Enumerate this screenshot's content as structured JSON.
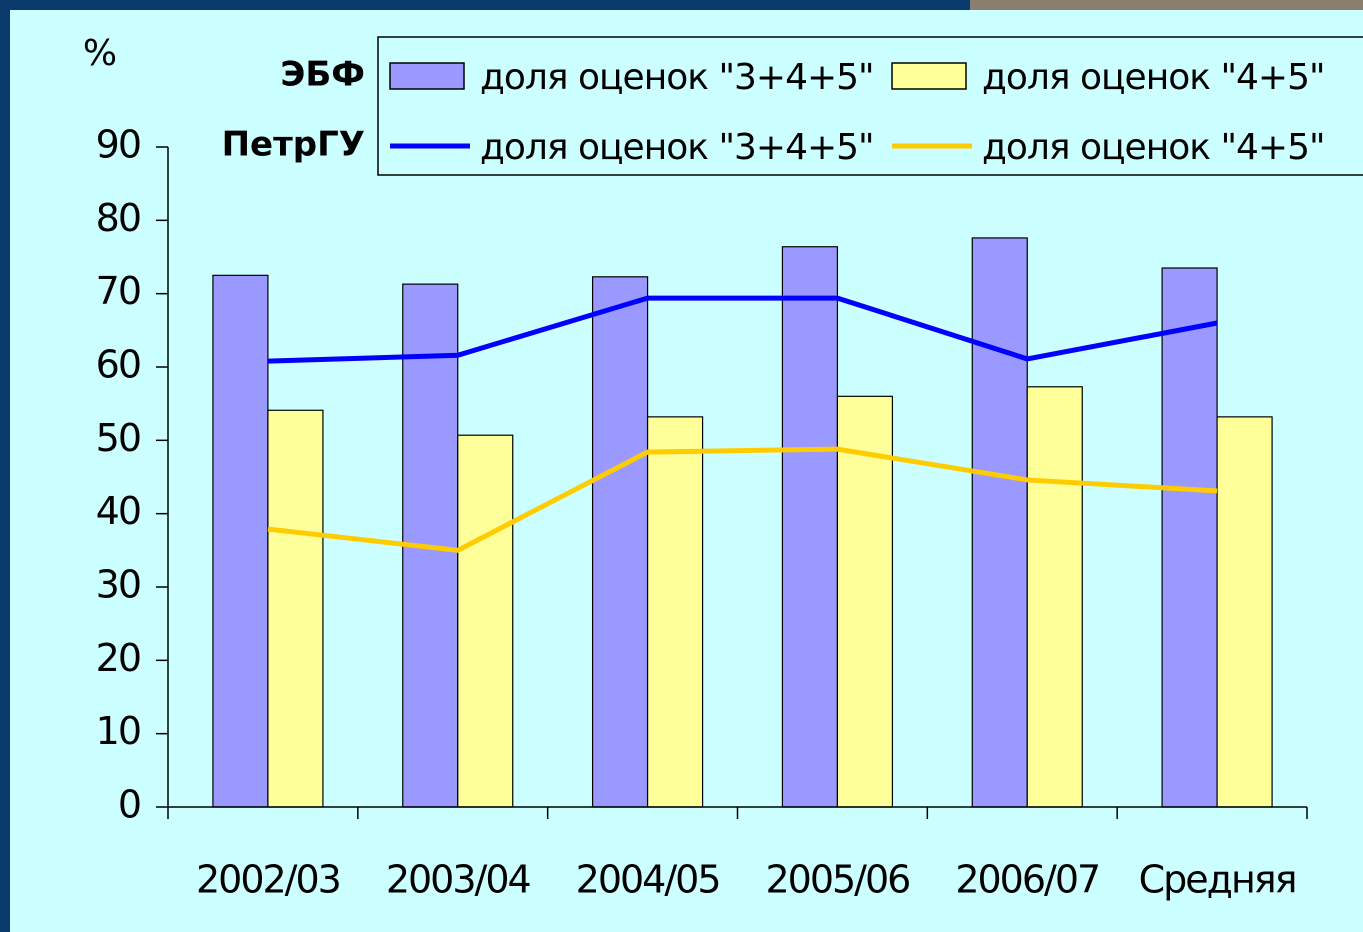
{
  "chart_data": {
    "type": "bar",
    "y_label": "%",
    "categories": [
      "2002/03",
      "2003/04",
      "2004/05",
      "2005/06",
      "2006/07",
      "Средняя"
    ],
    "legend_rows": [
      "ЭБФ",
      "ПетрГУ"
    ],
    "series": [
      {
        "name": "доля оценок \"3+4+5\"",
        "type": "bar",
        "color": "#9999ff",
        "values": [
          72.5,
          71.3,
          72.3,
          76.4,
          77.6,
          73.5
        ]
      },
      {
        "name": "доля оценок \"4+5\"",
        "type": "bar",
        "color": "#ffff99",
        "values": [
          54.1,
          50.7,
          53.2,
          56.0,
          57.3,
          53.2
        ]
      },
      {
        "name": "доля оценок \"3+4+5\"",
        "type": "line",
        "color": "#0000ff",
        "values": [
          60.8,
          61.6,
          69.4,
          69.4,
          61.1,
          66.0
        ]
      },
      {
        "name": "доля оценок \"4+5\"",
        "type": "line",
        "color": "#ffcc00",
        "values": [
          37.9,
          35.0,
          48.4,
          48.8,
          44.6,
          43.1
        ]
      }
    ],
    "ylim": [
      0,
      90
    ],
    "yticks": [
      0,
      10,
      20,
      30,
      40,
      50,
      60,
      70,
      80,
      90
    ]
  }
}
